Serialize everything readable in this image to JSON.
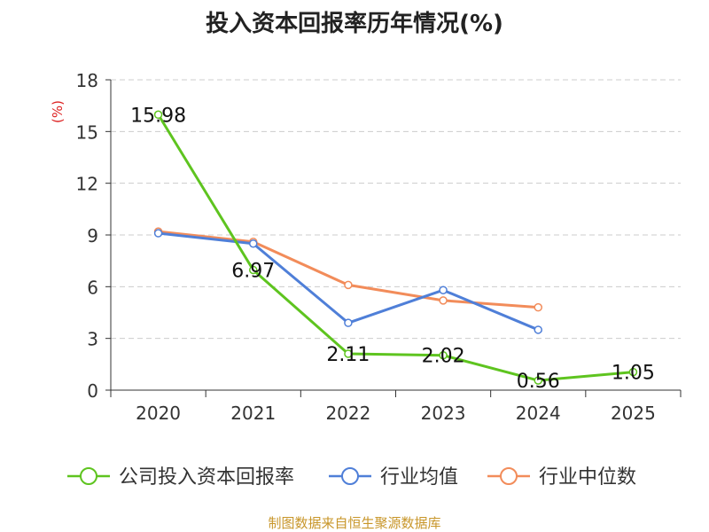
{
  "chart_data": {
    "type": "line",
    "title": "投入资本回报率历年情况(%)",
    "ylabel": "(%)",
    "xlabel": "",
    "categories": [
      "2020",
      "2021",
      "2022",
      "2023",
      "2024",
      "2025"
    ],
    "ylim": [
      0,
      18
    ],
    "yticks": [
      0,
      3,
      6,
      9,
      12,
      15,
      18
    ],
    "grid": true,
    "legend_position": "bottom",
    "series": [
      {
        "name": "公司投入资本回报率",
        "color": "#5ec41f",
        "values": [
          15.98,
          6.97,
          2.11,
          2.02,
          0.56,
          1.05
        ],
        "labels": [
          "15.98",
          "6.97",
          "2.11",
          "2.02",
          "0.56",
          "1.05"
        ]
      },
      {
        "name": "行业均值",
        "color": "#4f7fd8",
        "values": [
          9.1,
          8.5,
          3.9,
          5.8,
          3.5,
          null
        ]
      },
      {
        "name": "行业中位数",
        "color": "#f28c5a",
        "values": [
          9.2,
          8.6,
          6.1,
          5.2,
          4.8,
          null
        ]
      }
    ]
  },
  "source": "制图数据来自恒生聚源数据库"
}
